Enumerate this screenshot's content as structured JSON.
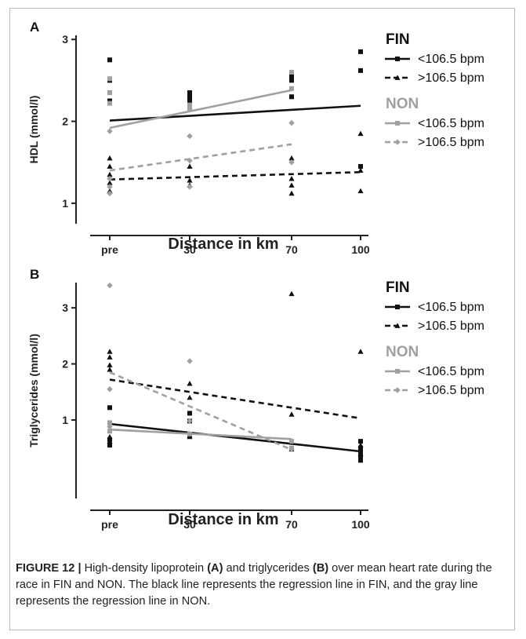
{
  "chart_data": [
    {
      "type": "scatter",
      "panel_label": "A",
      "xlabel": "Distance in km",
      "ylabel": "HDL (mmol/l)",
      "categories": [
        "pre",
        "30",
        "70",
        "100"
      ],
      "y_ticks": [
        "1",
        "2",
        "3"
      ],
      "ylim": [
        0.75,
        3.05
      ],
      "legend_placement": "right",
      "grid": false,
      "groups": [
        {
          "title": "FIN",
          "color": "#111111",
          "series": [
            {
              "name": "<106.5 bpm",
              "marker": "square",
              "dash": "solid",
              "points": [
                [
                  0,
                  2.75
                ],
                [
                  0,
                  2.5
                ],
                [
                  0,
                  2.35
                ],
                [
                  0,
                  2.25
                ],
                [
                  1,
                  2.35
                ],
                [
                  1,
                  2.25
                ],
                [
                  1,
                  2.3
                ],
                [
                  2,
                  2.5
                ],
                [
                  2,
                  2.3
                ],
                [
                  2,
                  2.55
                ],
                [
                  3,
                  2.85
                ],
                [
                  3,
                  2.62
                ],
                [
                  3,
                  1.45
                ]
              ],
              "fit": [
                [
                  0,
                  2.01
                ],
                [
                  3,
                  2.19
                ]
              ]
            },
            {
              "name": ">106.5 bpm",
              "marker": "triangle",
              "dash": "dashed",
              "points": [
                [
                  0,
                  1.55
                ],
                [
                  0,
                  1.45
                ],
                [
                  0,
                  1.35
                ],
                [
                  0,
                  1.25
                ],
                [
                  0,
                  1.15
                ],
                [
                  1,
                  1.45
                ],
                [
                  1,
                  1.28
                ],
                [
                  1,
                  1.22
                ],
                [
                  2,
                  1.55
                ],
                [
                  2,
                  1.3
                ],
                [
                  2,
                  1.22
                ],
                [
                  2,
                  1.12
                ],
                [
                  3,
                  1.85
                ],
                [
                  3,
                  1.4
                ],
                [
                  3,
                  1.15
                ]
              ],
              "fit": [
                [
                  0,
                  1.29
                ],
                [
                  3,
                  1.38
                ]
              ]
            }
          ]
        },
        {
          "title": "NON",
          "color": "#a0a0a0",
          "series": [
            {
              "name": "<106.5 bpm",
              "marker": "square",
              "dash": "solid",
              "points": [
                [
                  0,
                  2.52
                ],
                [
                  0,
                  2.35
                ],
                [
                  0,
                  2.22
                ],
                [
                  1,
                  2.2
                ],
                [
                  1,
                  2.15
                ],
                [
                  2,
                  2.6
                ],
                [
                  2,
                  2.4
                ]
              ],
              "fit": [
                [
                  0,
                  1.92
                ],
                [
                  2,
                  2.38
                ]
              ]
            },
            {
              "name": ">106.5 bpm",
              "marker": "diamond",
              "dash": "dashed",
              "points": [
                [
                  0,
                  1.88
                ],
                [
                  0,
                  1.3
                ],
                [
                  0,
                  1.2
                ],
                [
                  0,
                  1.12
                ],
                [
                  1,
                  1.82
                ],
                [
                  1,
                  1.52
                ],
                [
                  1,
                  1.2
                ],
                [
                  2,
                  1.98
                ],
                [
                  2,
                  1.5
                ]
              ],
              "fit": [
                [
                  0,
                  1.4
                ],
                [
                  2,
                  1.72
                ]
              ]
            }
          ]
        }
      ]
    },
    {
      "type": "scatter",
      "panel_label": "B",
      "xlabel": "Distance in km",
      "ylabel": "Triglycerides (mmol/l)",
      "categories": [
        "pre",
        "30",
        "70",
        "100"
      ],
      "y_ticks": [
        "1",
        "2",
        "3"
      ],
      "ylim": [
        -0.4,
        3.45
      ],
      "legend_placement": "right",
      "grid": false,
      "groups": [
        {
          "title": "FIN",
          "color": "#111111",
          "series": [
            {
              "name": "<106.5 bpm",
              "marker": "square",
              "dash": "solid",
              "points": [
                [
                  0,
                  1.22
                ],
                [
                  0,
                  0.95
                ],
                [
                  0,
                  0.65
                ],
                [
                  0,
                  0.55
                ],
                [
                  1,
                  1.12
                ],
                [
                  1,
                  0.98
                ],
                [
                  1,
                  0.72
                ],
                [
                  2,
                  0.6
                ],
                [
                  2,
                  0.48
                ],
                [
                  3,
                  0.62
                ],
                [
                  3,
                  0.5
                ],
                [
                  3,
                  0.42
                ],
                [
                  3,
                  0.35
                ],
                [
                  3,
                  0.28
                ]
              ],
              "fit": [
                [
                  0,
                  0.93
                ],
                [
                  3,
                  0.44
                ]
              ]
            },
            {
              "name": ">106.5 bpm",
              "marker": "triangle",
              "dash": "dashed",
              "points": [
                [
                  0,
                  2.22
                ],
                [
                  0,
                  2.12
                ],
                [
                  0,
                  1.98
                ],
                [
                  0,
                  1.9
                ],
                [
                  0,
                  0.7
                ],
                [
                  0,
                  0.62
                ],
                [
                  1,
                  1.65
                ],
                [
                  1,
                  1.4
                ],
                [
                  1,
                  0.7
                ],
                [
                  2,
                  3.25
                ],
                [
                  2,
                  1.1
                ],
                [
                  3,
                  2.22
                ],
                [
                  3,
                  0.55
                ],
                [
                  3,
                  0.4
                ]
              ],
              "fit": [
                [
                  0,
                  1.72
                ],
                [
                  3,
                  1.03
                ]
              ]
            }
          ]
        },
        {
          "title": "NON",
          "color": "#a0a0a0",
          "series": [
            {
              "name": "<106.5 bpm",
              "marker": "square",
              "dash": "solid",
              "points": [
                [
                  0,
                  0.95
                ],
                [
                  0,
                  0.8
                ],
                [
                  1,
                  0.75
                ],
                [
                  2,
                  0.62
                ],
                [
                  2,
                  0.5
                ]
              ],
              "fit": [
                [
                  0,
                  0.83
                ],
                [
                  2,
                  0.66
                ]
              ]
            },
            {
              "name": ">106.5 bpm",
              "marker": "diamond",
              "dash": "dashed",
              "points": [
                [
                  0,
                  3.4
                ],
                [
                  0,
                  1.55
                ],
                [
                  0,
                  0.88
                ],
                [
                  1,
                  2.05
                ],
                [
                  1,
                  0.98
                ],
                [
                  2,
                  0.48
                ]
              ],
              "fit": [
                [
                  0,
                  1.85
                ],
                [
                  2,
                  0.47
                ]
              ]
            }
          ]
        }
      ]
    }
  ],
  "caption": {
    "figure_label": "FIGURE 12 |",
    "part1": " High-density lipoprotein ",
    "a_label": "(A)",
    "part2": " and triglycerides ",
    "b_label": "(B)",
    "part3": " over mean heart rate during the race in FIN and NON. The black line represents the regression line in FIN, and the gray line represents the regression line in NON."
  }
}
